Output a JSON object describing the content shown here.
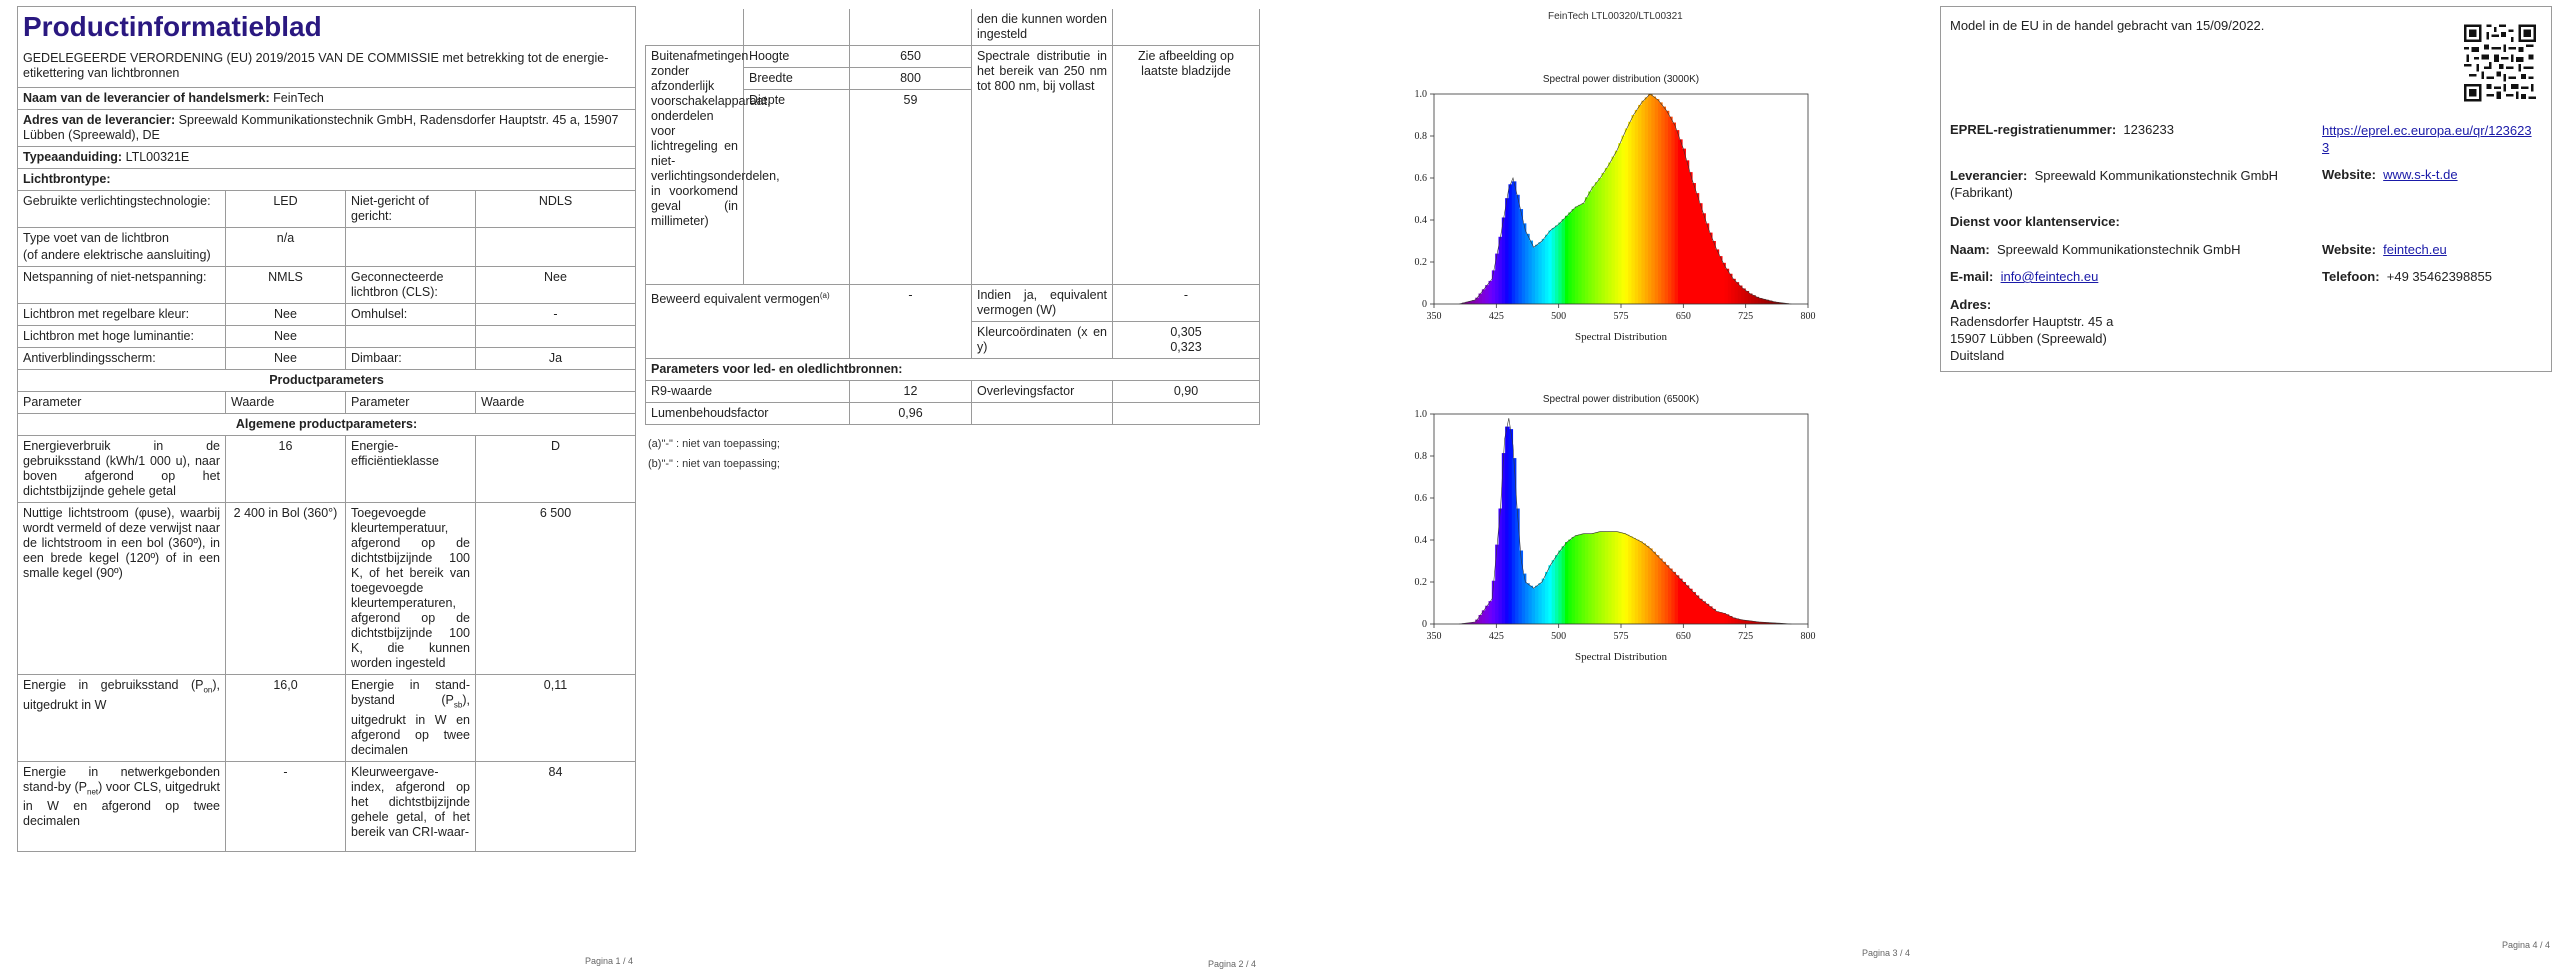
{
  "page1": {
    "title": "Productinformatieblad",
    "regulation": "GEDELEGEERDE VERORDENING (EU) 2019/2015 VAN DE COMMISSIE met betrekking tot de energie-etikettering van lichtbronnen",
    "supplier_name_label": "Naam van de leverancier of handelsmerk:",
    "supplier_name": "FeinTech",
    "supplier_address_label": "Adres van de leverancier:",
    "supplier_address": "Spreewald Kommunikationstechnik GmbH, Radensdorfer Hauptstr. 45 a, 15907 Lübben (Spreewald), DE",
    "model_label": "Typeaanduiding:",
    "model": "LTL00321E",
    "lightsource_type": "Lichtbrontype:",
    "rows": [
      {
        "a": "Gebruikte verlichtingstechnologie:",
        "b": "LED",
        "c": "Niet-gericht of gericht:",
        "d": "NDLS"
      },
      {
        "a": "Type voet van de lichtbron",
        "b": "n/a",
        "c": "",
        "d": ""
      },
      {
        "a": "(of andere elektrische aansluiting)",
        "b": "",
        "c": "",
        "d": ""
      },
      {
        "a": "Netspanning of niet-netspanning:",
        "b": "NMLS",
        "c": "Geconnecteerde lichtbron (CLS):",
        "d": "Nee"
      },
      {
        "a": "Lichtbron met regelbare kleur:",
        "b": "Nee",
        "c": "Omhulsel:",
        "d": "-"
      },
      {
        "a": "Lichtbron met hoge luminantie:",
        "b": "Nee",
        "c": "",
        "d": ""
      },
      {
        "a": "Antiverblindingsscherm:",
        "b": "Nee",
        "c": "Dimbaar:",
        "d": "Ja"
      }
    ],
    "product_params": "Productparameters",
    "param_headers": [
      "Parameter",
      "Waarde",
      "Parameter",
      "Waarde"
    ],
    "general_params": "Algemene productparameters:",
    "p_rows": [
      {
        "a": "Energieverbruik in de gebruiksstand (kWh/1 000 u), naar boven afgerond op het dichtstbijzijnde gehele getal",
        "b": "16",
        "c": "Energie-efficiëntieklasse",
        "d": "D"
      },
      {
        "a": "Nuttige lichtstroom (φuse), waarbij wordt vermeld of deze verwijst naar de lichtstroom in een bol (360º), in een brede kegel (120º) of in een smalle kegel (90º)",
        "b": "2 400 in Bol (360°)",
        "c": "Toegevoegde kleurtemperatuur, afgerond op de dichtstbijzijnde 100 K, of het bereik van toegevoegde kleurtemperaturen, afgerond op de dichtstbijzijnde 100 K, die kunnen worden ingesteld",
        "d": "6 500"
      },
      {
        "a_pre": "Energie in gebruiksstand (P",
        "a_sub": "on",
        "a_post": "), uitgedrukt in W",
        "b": "16,0",
        "c_pre": "Energie in stand-bystand (P",
        "c_sub": "sb",
        "c_post": "), uitgedrukt in W en afgerond op twee decimalen",
        "d": "0,11"
      },
      {
        "a_pre": "Energie in netwerkgebonden stand-by (P",
        "a_sub": "net",
        "a_post": ") voor CLS, uitgedrukt in W en afgerond op twee decimalen",
        "b": "-",
        "c": "Kleurweergave-index, afgerond op het dichtstbijzijnde gehele getal, of het bereik van CRI-waar-",
        "d": "84"
      }
    ],
    "page_num": "Pagina 1 / 4"
  },
  "page2": {
    "top_cont": "den die kunnen worden ingesteld",
    "dim_label": "Buitenafmetingen zonder afzonderlijk voorschakelapparaat, onderdelen voor lichtregeling en niet-verlichtingsonderdelen, in voorkomend geval (in millimeter)",
    "dims": [
      {
        "k": "Hoogte",
        "v": "650"
      },
      {
        "k": "Breedte",
        "v": "800"
      },
      {
        "k": "Diepte",
        "v": "59"
      }
    ],
    "spectral_label": "Spectrale distributie in het bereik van 250 nm tot 800 nm, bij vollast",
    "spectral_value": "Zie afbeelding op laatste bladzijde",
    "claimed_power_label": "Beweerd equivalent vermogen",
    "claimed_power_sup": "(a)",
    "claimed_power_value": "-",
    "equiv_label": "Indien ja, equivalent vermogen (W)",
    "equiv_value": "-",
    "chroma_label": "Kleurcoördinaten (x en y)",
    "chroma_x": "0,305",
    "chroma_y": "0,323",
    "led_params": "Parameters voor led- en oledlichtbronnen:",
    "r9_label": "R9-waarde",
    "r9": "12",
    "survival_label": "Overlevingsfactor",
    "survival": "0,90",
    "lumen_label": "Lumenbehoudsfactor",
    "lumen": "0,96",
    "note_a": "(a)\"-\" : niet van toepassing;",
    "note_b": "(b)\"-\" : niet van toepassing;",
    "page_num": "Pagina 2 / 4"
  },
  "page3": {
    "header": "FeinTech LTL00320/LTL00321",
    "page_num": "Pagina 3 / 4"
  },
  "page4": {
    "placed_on_market": "Model in de EU in de handel gebracht van 15/09/2022.",
    "eprel_label": "EPREL-registratienummer:",
    "eprel": "1236233",
    "eprel_link": "https://eprel.ec.europa.eu/qr/1236233",
    "supplier_label": "Leverancier:",
    "supplier": "Spreewald Kommunikationstechnik GmbH (Fabrikant)",
    "website_label": "Website:",
    "website": "www.s-k-t.de",
    "service_label": "Dienst voor klantenservice:",
    "name_label": "Naam:",
    "name": "Spreewald Kommunikationstechnik GmbH",
    "website2_label": "Website:",
    "website2": "feintech.eu",
    "email_label": "E-mail:",
    "email": "info@feintech.eu",
    "phone_label": "Telefoon:",
    "phone": "+49 35462398855",
    "address_label": "Adres:",
    "address_lines": [
      "Radensdorfer Hauptstr. 45 a",
      "15907 Lübben (Spreewald)",
      "Duitsland"
    ],
    "page_num": "Pagina 4 / 4"
  },
  "chart_data": [
    {
      "type": "area",
      "title": "Spectral power distribution (3000K)",
      "xlabel": "Spectral Distribution",
      "ylabel": "",
      "xlim": [
        350,
        800
      ],
      "ylim": [
        0,
        1.0
      ],
      "xticks": [
        350,
        425,
        500,
        575,
        650,
        725,
        800
      ],
      "yticks": [
        0,
        0.2,
        0.4,
        0.6,
        0.8,
        1.0
      ],
      "x": [
        380,
        400,
        420,
        430,
        440,
        445,
        450,
        460,
        470,
        480,
        490,
        500,
        510,
        520,
        530,
        540,
        550,
        560,
        570,
        580,
        590,
        600,
        610,
        620,
        630,
        640,
        650,
        660,
        670,
        680,
        690,
        700,
        710,
        720,
        730,
        740,
        750,
        760,
        780
      ],
      "y": [
        0.0,
        0.02,
        0.12,
        0.32,
        0.55,
        0.6,
        0.52,
        0.35,
        0.27,
        0.3,
        0.35,
        0.38,
        0.42,
        0.46,
        0.48,
        0.55,
        0.6,
        0.66,
        0.73,
        0.82,
        0.9,
        0.96,
        1.0,
        0.97,
        0.92,
        0.85,
        0.74,
        0.6,
        0.48,
        0.36,
        0.26,
        0.18,
        0.12,
        0.08,
        0.05,
        0.03,
        0.02,
        0.01,
        0.0
      ]
    },
    {
      "type": "area",
      "title": "Spectral power distribution (6500K)",
      "xlabel": "Spectral Distribution",
      "ylabel": "",
      "xlim": [
        350,
        800
      ],
      "ylim": [
        0,
        1.0
      ],
      "xticks": [
        350,
        425,
        500,
        575,
        650,
        725,
        800
      ],
      "yticks": [
        0,
        0.2,
        0.4,
        0.6,
        0.8,
        1.0
      ],
      "x": [
        380,
        400,
        420,
        430,
        435,
        440,
        445,
        450,
        455,
        460,
        470,
        480,
        490,
        500,
        510,
        520,
        530,
        540,
        550,
        560,
        570,
        580,
        590,
        600,
        610,
        620,
        630,
        640,
        650,
        660,
        670,
        680,
        690,
        700,
        710,
        720,
        730,
        740,
        760,
        780
      ],
      "y": [
        0.0,
        0.01,
        0.12,
        0.55,
        0.88,
        0.98,
        0.85,
        0.55,
        0.3,
        0.2,
        0.17,
        0.2,
        0.28,
        0.34,
        0.39,
        0.42,
        0.43,
        0.43,
        0.44,
        0.44,
        0.44,
        0.43,
        0.41,
        0.39,
        0.36,
        0.32,
        0.28,
        0.24,
        0.2,
        0.16,
        0.12,
        0.09,
        0.06,
        0.05,
        0.03,
        0.02,
        0.015,
        0.01,
        0.005,
        0.0
      ]
    }
  ]
}
